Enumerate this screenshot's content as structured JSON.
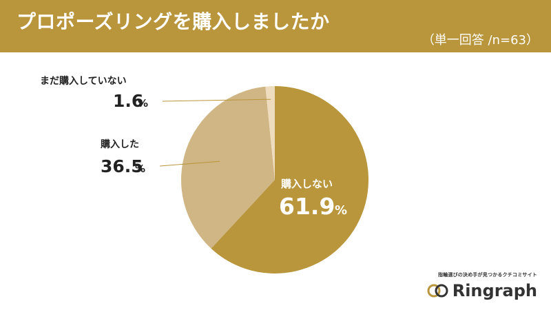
{
  "header": {
    "title": "プロポーズリングを購入しましたか",
    "subtitle": "（単一回答 /n=63）"
  },
  "colors": {
    "header_bg": "#b9953b",
    "slice_not_purchased": "#b9953b",
    "slice_purchased": "#cfb684",
    "slice_not_yet": "#eedcbe",
    "leader_line": "#b9953b"
  },
  "chart_data": {
    "type": "pie",
    "start_angle_deg": 0,
    "direction": "clockwise",
    "slices": [
      {
        "label": "購入しない",
        "value": 61.9,
        "value_text": "61.9",
        "unit": "%"
      },
      {
        "label": "購入した",
        "value": 36.5,
        "value_text": "36.5",
        "unit": "%"
      },
      {
        "label": "まだ購入していない",
        "value": 1.6,
        "value_text": "1.6",
        "unit": "%"
      }
    ]
  },
  "brand": {
    "tagline": "指輪選びの決め手が見つかるクチコミサイト",
    "name": "Ringraph",
    "logo_icon": "double-ring-logo-icon"
  }
}
